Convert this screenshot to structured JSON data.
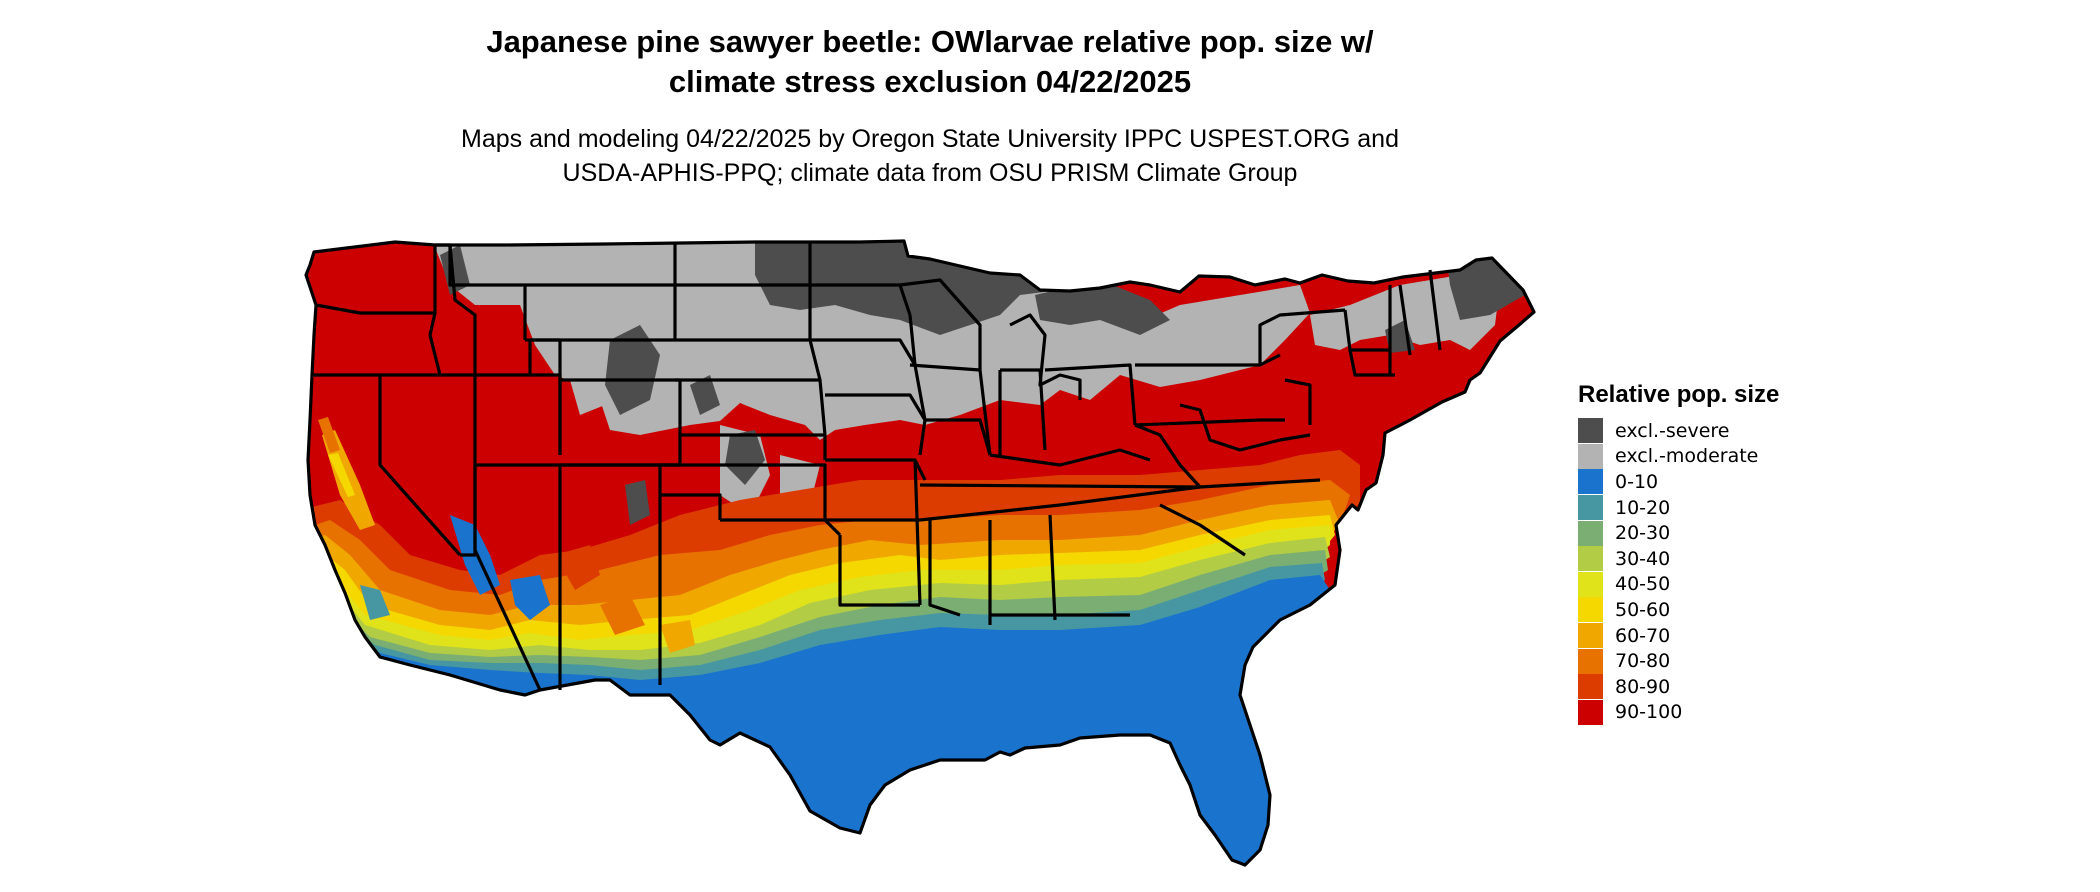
{
  "title_line1": "Japanese pine sawyer beetle: OWlarvae relative pop. size w/",
  "title_line2": "climate stress exclusion 04/22/2025",
  "subtitle_line1": "Maps and modeling 04/22/2025 by Oregon State University IPPC USPEST.ORG and",
  "subtitle_line2": "USDA-APHIS-PPQ; climate data from OSU PRISM Climate Group",
  "legend": {
    "title": "Relative pop. size",
    "items": [
      {
        "label": "excl.-severe",
        "color": "#4d4d4d"
      },
      {
        "label": "excl.-moderate",
        "color": "#b3b3b3"
      },
      {
        "label": "0-10",
        "color": "#1a73cc"
      },
      {
        "label": "10-20",
        "color": "#4797a3"
      },
      {
        "label": "20-30",
        "color": "#7aae72"
      },
      {
        "label": "30-40",
        "color": "#b3cc45"
      },
      {
        "label": "40-50",
        "color": "#e0e31a"
      },
      {
        "label": "50-60",
        "color": "#f5d800"
      },
      {
        "label": "60-70",
        "color": "#f0a800"
      },
      {
        "label": "70-80",
        "color": "#e87200"
      },
      {
        "label": "80-90",
        "color": "#dd3c00"
      },
      {
        "label": "90-100",
        "color": "#cc0000"
      }
    ]
  }
}
